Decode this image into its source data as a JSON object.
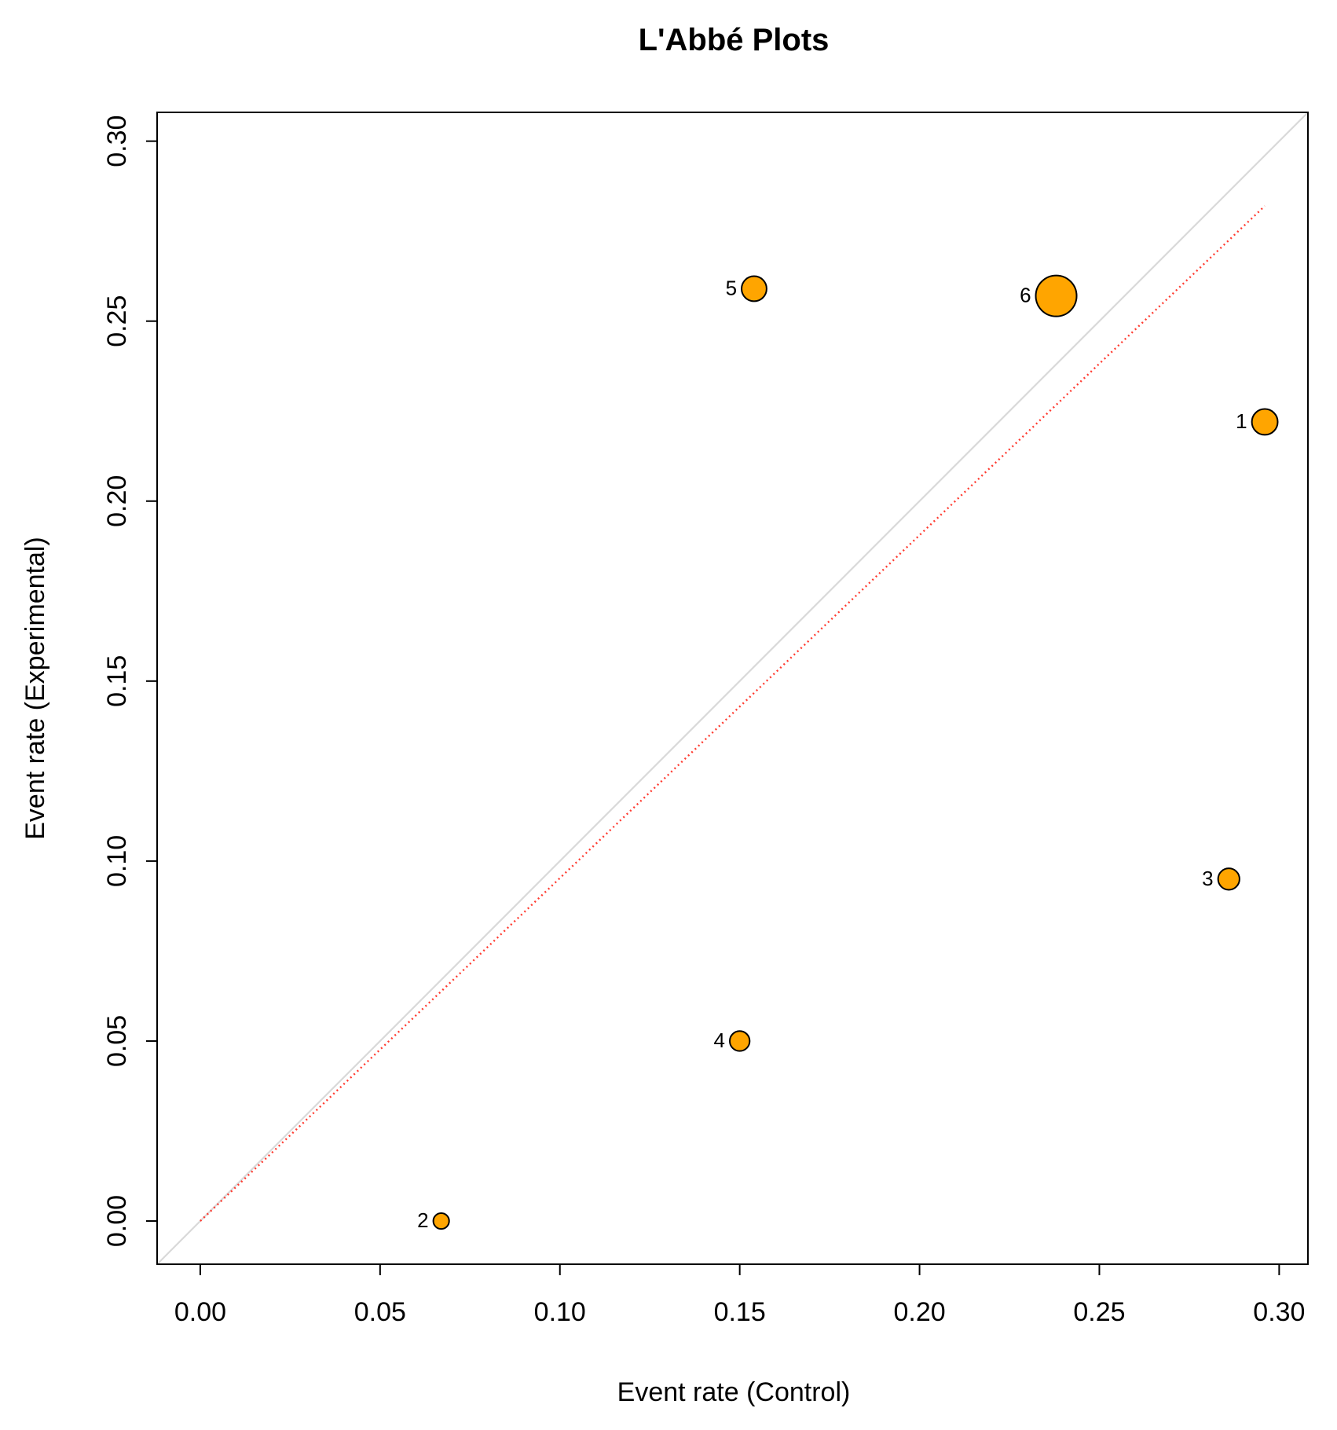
{
  "chart_data": {
    "type": "scatter",
    "title": "L'Abbé Plots",
    "xlabel": "Event rate (Control)",
    "ylabel": "Event rate (Experimental)",
    "xlim": [
      -0.012,
      0.308
    ],
    "ylim": [
      -0.012,
      0.308
    ],
    "xticks": [
      "0.00",
      "0.05",
      "0.10",
      "0.15",
      "0.20",
      "0.25",
      "0.30"
    ],
    "yticks": [
      "0.00",
      "0.05",
      "0.10",
      "0.15",
      "0.20",
      "0.25",
      "0.30"
    ],
    "grid": false,
    "legend": "none",
    "points": [
      {
        "label": "1",
        "x": 0.296,
        "y": 0.222,
        "weight": 1.6
      },
      {
        "label": "2",
        "x": 0.067,
        "y": 0.0,
        "weight": 0.6
      },
      {
        "label": "3",
        "x": 0.286,
        "y": 0.095,
        "weight": 1.1
      },
      {
        "label": "4",
        "x": 0.15,
        "y": 0.05,
        "weight": 0.95
      },
      {
        "label": "5",
        "x": 0.154,
        "y": 0.259,
        "weight": 1.5
      },
      {
        "label": "6",
        "x": 0.238,
        "y": 0.257,
        "weight": 4.0
      }
    ],
    "reference_lines": [
      {
        "name": "identity",
        "style": "solid",
        "color": "#d9d9d9",
        "from": [
          -0.012,
          -0.012
        ],
        "to": [
          0.308,
          0.308
        ]
      },
      {
        "name": "pooled-effect",
        "style": "dotted",
        "color": "#ff3b30",
        "from": [
          0.0,
          0.0
        ],
        "to": [
          0.296,
          0.282
        ]
      }
    ],
    "point_color": "#ffa500"
  }
}
